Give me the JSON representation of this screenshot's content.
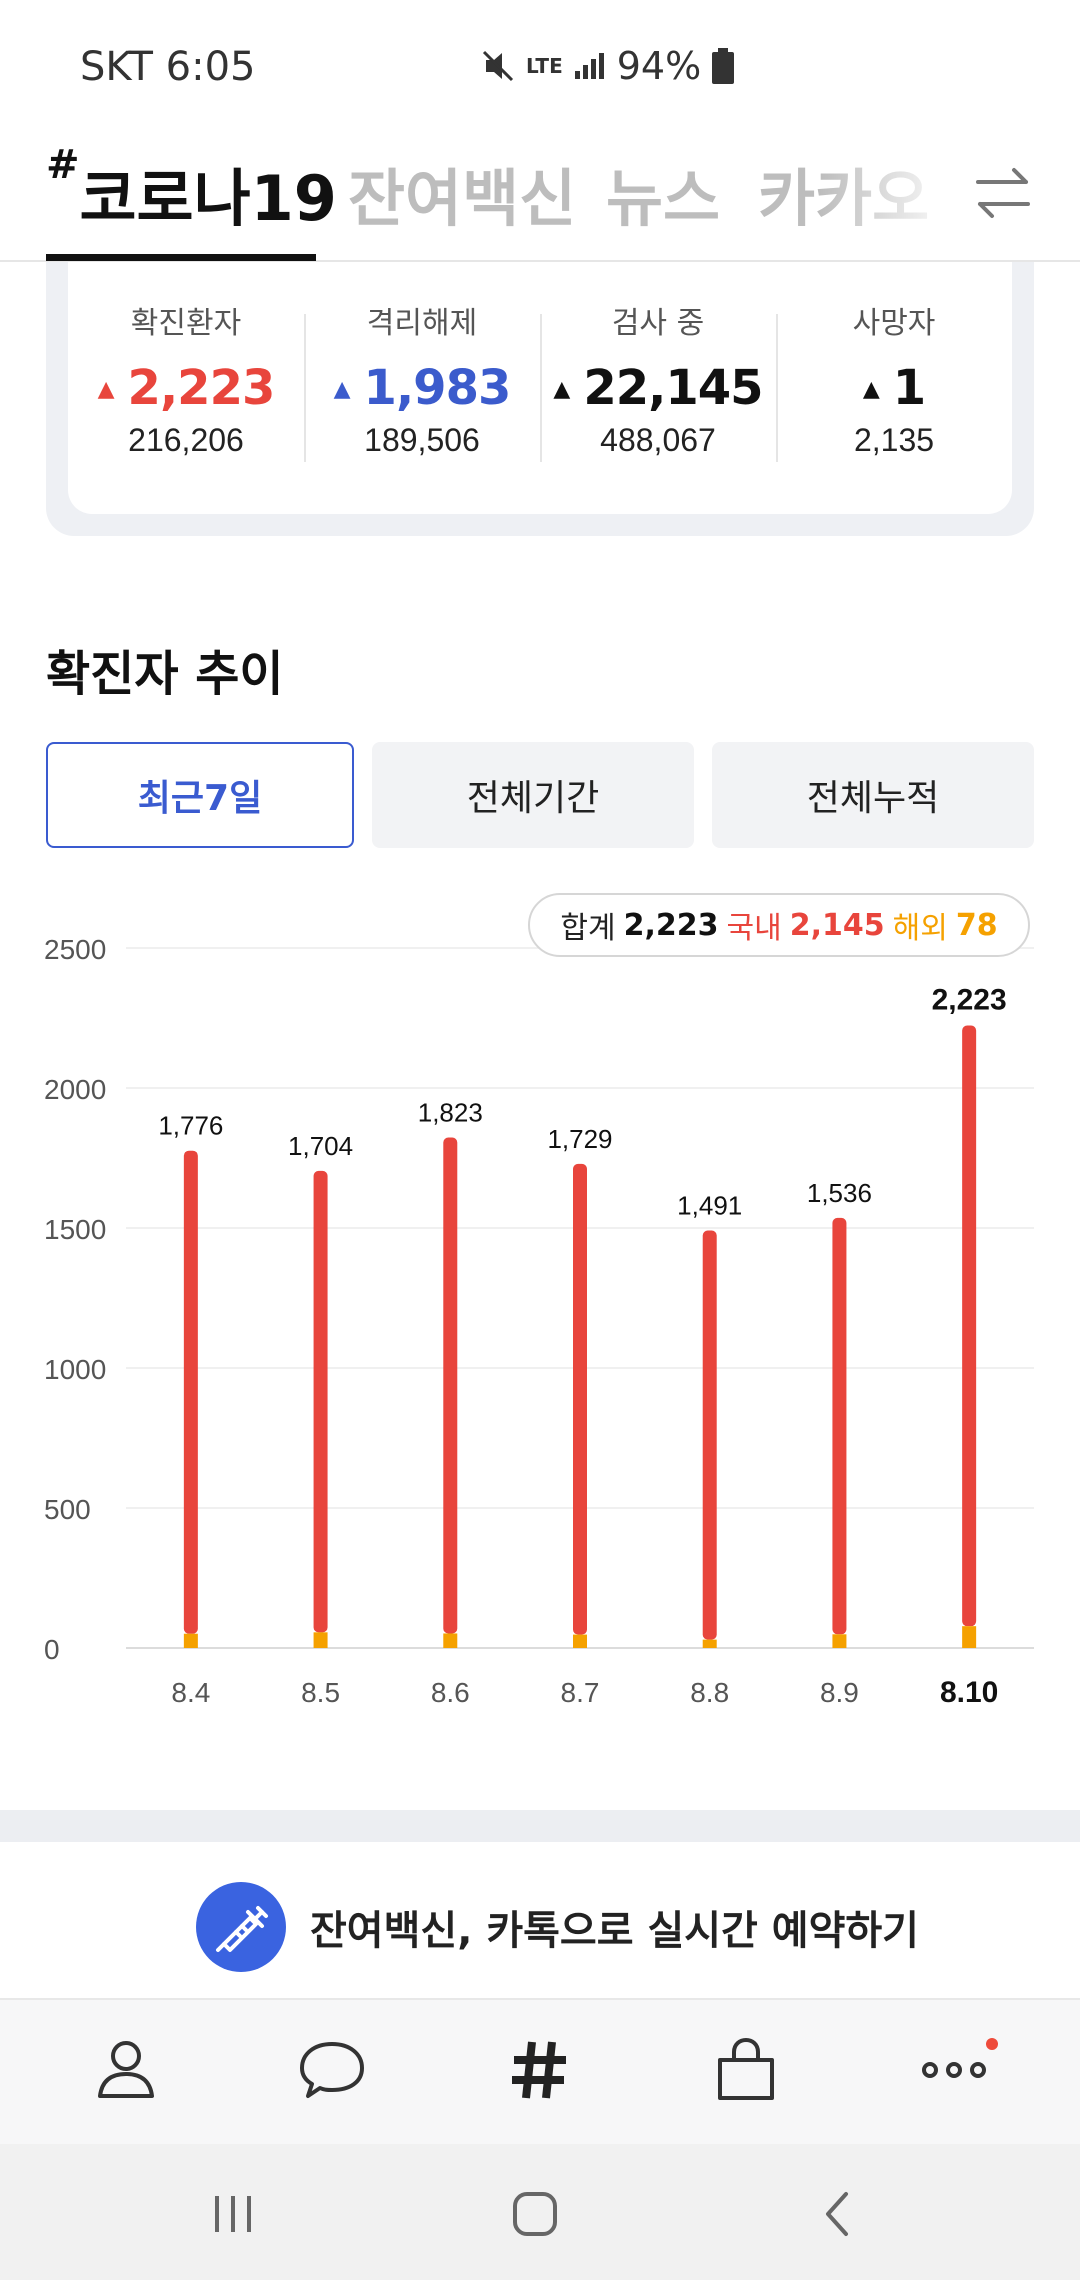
{
  "status_bar": {
    "carrier_time": "SKT 6:05",
    "network": "LTE",
    "battery": "94%"
  },
  "tabs": [
    {
      "hash": "#",
      "label": "코로나19",
      "active": true
    },
    {
      "label": "잔여백신",
      "active": false
    },
    {
      "label": "뉴스",
      "active": false
    },
    {
      "label": "카카오",
      "active": false
    }
  ],
  "stats": [
    {
      "label": "확진환자",
      "value": "2,223",
      "total": "216,206",
      "color": "#e8453c",
      "arrow": "▲"
    },
    {
      "label": "격리해제",
      "value": "1,983",
      "total": "189,506",
      "color": "#3b5bcc",
      "arrow": "▲"
    },
    {
      "label": "검사 중",
      "value": "22,145",
      "total": "488,067",
      "color": "#111111",
      "arrow": "▲"
    },
    {
      "label": "사망자",
      "value": "1",
      "total": "2,135",
      "color": "#111111",
      "arrow": "▲"
    }
  ],
  "section_title": "확진자 추이",
  "period_buttons": [
    {
      "label": "최근7일",
      "active": true
    },
    {
      "label": "전체기간",
      "active": false
    },
    {
      "label": "전체누적",
      "active": false
    }
  ],
  "tooltip": {
    "sum_label": "합계",
    "sum_value": "2,223",
    "domestic_label": "국내",
    "domestic_value": "2,145",
    "overseas_label": "해외",
    "overseas_value": "78"
  },
  "chart_data": {
    "type": "bar",
    "categories": [
      "8.4",
      "8.5",
      "8.6",
      "8.7",
      "8.8",
      "8.9",
      "8.10"
    ],
    "series": [
      {
        "name": "국내",
        "values": [
          1725,
          1648,
          1771,
          1681,
          1461,
          1487,
          2145
        ]
      },
      {
        "name": "해외",
        "values": [
          51,
          56,
          52,
          48,
          30,
          49,
          78
        ]
      }
    ],
    "totals": [
      1776,
      1704,
      1823,
      1729,
      1491,
      1536,
      2223
    ],
    "total_labels": [
      "1,776",
      "1,704",
      "1,823",
      "1,729",
      "1,491",
      "1,536",
      "2,223"
    ],
    "y_ticks": [
      0,
      500,
      1000,
      1500,
      2000,
      2500
    ],
    "ylim": [
      0,
      2500
    ],
    "grid": true,
    "colors": {
      "domestic": "#e8453c",
      "overseas": "#f5a100"
    }
  },
  "banner": {
    "text": "잔여백신, 카톡으로 실시간 예약하기"
  },
  "bottom_nav": [
    {
      "name": "friends",
      "icon": "person-icon"
    },
    {
      "name": "chats",
      "icon": "chat-bubble-icon"
    },
    {
      "name": "hash",
      "icon": "hash-icon"
    },
    {
      "name": "shopping",
      "icon": "shopping-bag-icon"
    },
    {
      "name": "more",
      "icon": "more-icon"
    }
  ]
}
